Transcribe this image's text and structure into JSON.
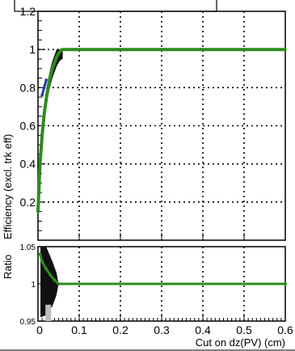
{
  "chart_data": [
    {
      "type": "line",
      "title": "",
      "xlabel": "",
      "ylabel": "Efficiency (excl. trk eff)",
      "xlim": [
        0,
        0.6
      ],
      "ylim": [
        0,
        1.2
      ],
      "y_ticks": [
        "0.2",
        "0.4",
        "0.6",
        "0.8",
        "1",
        "1.2"
      ],
      "grid": true,
      "series": [
        {
          "color": "#2e8b1e",
          "x": [
            0,
            0.005,
            0.01,
            0.015,
            0.02,
            0.025,
            0.03,
            0.035,
            0.04,
            0.045,
            0.05,
            0.055,
            0.06,
            0.6
          ],
          "y": [
            0.15,
            0.4,
            0.55,
            0.66,
            0.74,
            0.81,
            0.86,
            0.9,
            0.93,
            0.96,
            0.98,
            0.995,
            1.0,
            1.0
          ]
        },
        {
          "color": "#2a3aa8",
          "x": [
            0.01,
            0.015,
            0.02
          ],
          "y": [
            0.76,
            0.8,
            0.84
          ]
        }
      ]
    },
    {
      "type": "line",
      "title": "",
      "xlabel": "Cut on dz(PV) (cm)",
      "ylabel": "Ratio",
      "xlim": [
        0,
        0.6
      ],
      "ylim": [
        0.95,
        1.05
      ],
      "x_ticks": [
        "0",
        "0.1",
        "0.2",
        "0.3",
        "0.4",
        "0.5",
        "0.6"
      ],
      "y_ticks": [
        "0.95",
        "1",
        "1.05"
      ],
      "grid": true,
      "series": [
        {
          "color": "#2e8b1e",
          "x": [
            0.005,
            0.01,
            0.02,
            0.03,
            0.04,
            0.05,
            0.6
          ],
          "y": [
            1.04,
            1.03,
            1.02,
            1.012,
            1.005,
            1.0,
            1.0
          ]
        }
      ]
    }
  ]
}
